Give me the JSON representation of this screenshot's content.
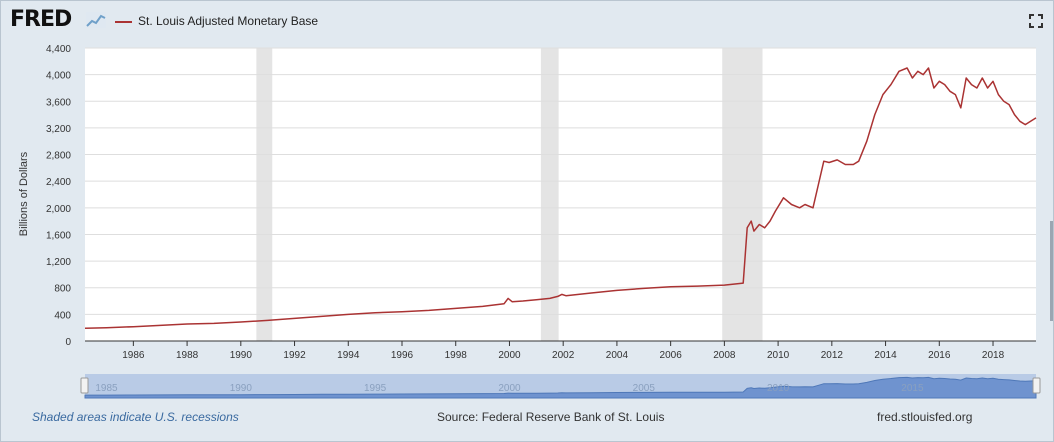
{
  "header": {
    "logo_text": "FRED",
    "series_label": "St. Louis Adjusted Monetary Base"
  },
  "colors": {
    "series": "#aa3333",
    "recession": "#e4e4e4",
    "navigator_fill": "#6f93cf",
    "navigator_bg": "#b9cbe6"
  },
  "icons": {
    "logo_mark": "line-chart-icon",
    "fullscreen": "expand-icon"
  },
  "footer": {
    "note": "Shaded areas indicate U.S. recessions",
    "source": "Source: Federal Reserve Bank of St. Louis",
    "site": "fred.stlouisfed.org"
  },
  "navigator": {
    "ticks": [
      "1985",
      "1990",
      "1995",
      "2000",
      "2005",
      "2010",
      "2015"
    ]
  },
  "chart_data": {
    "type": "line",
    "title": "",
    "ylabel": "Billions of Dollars",
    "xlabel": "",
    "xlim": [
      1984.2,
      2019.6
    ],
    "ylim": [
      0,
      4400
    ],
    "yticks": [
      "0",
      "400",
      "800",
      "1,200",
      "1,600",
      "2,000",
      "2,400",
      "2,800",
      "3,200",
      "3,600",
      "4,000",
      "4,400"
    ],
    "ytick_values": [
      0,
      400,
      800,
      1200,
      1600,
      2000,
      2400,
      2800,
      3200,
      3600,
      4000,
      4400
    ],
    "xticks": [
      "1986",
      "1988",
      "1990",
      "1992",
      "1994",
      "1996",
      "1998",
      "2000",
      "2002",
      "2004",
      "2006",
      "2008",
      "2010",
      "2012",
      "2014",
      "2016",
      "2018"
    ],
    "xtick_values": [
      1986,
      1988,
      1990,
      1992,
      1994,
      1996,
      1998,
      2000,
      2002,
      2004,
      2006,
      2008,
      2010,
      2012,
      2014,
      2016,
      2018
    ],
    "grid": true,
    "legend": "top-left",
    "recessions": [
      [
        1990.58,
        1991.17
      ],
      [
        2001.17,
        2001.83
      ],
      [
        2007.92,
        2009.42
      ]
    ],
    "series": [
      {
        "name": "St. Louis Adjusted Monetary Base",
        "x": [
          1984.2,
          1985,
          1986,
          1987,
          1988,
          1989,
          1990,
          1991,
          1992,
          1993,
          1994,
          1995,
          1996,
          1997,
          1998,
          1999,
          1999.8,
          1999.95,
          2000.1,
          2000.5,
          2001,
          2001.5,
          2001.8,
          2001.95,
          2002.1,
          2003,
          2004,
          2005,
          2006,
          2007,
          2008,
          2008.7,
          2008.85,
          2009.0,
          2009.1,
          2009.3,
          2009.5,
          2009.7,
          2009.9,
          2010.2,
          2010.5,
          2010.8,
          2011.0,
          2011.3,
          2011.5,
          2011.7,
          2011.9,
          2012.2,
          2012.5,
          2012.8,
          2013.0,
          2013.3,
          2013.6,
          2013.9,
          2014.2,
          2014.5,
          2014.8,
          2015.0,
          2015.2,
          2015.4,
          2015.6,
          2015.8,
          2016.0,
          2016.2,
          2016.4,
          2016.6,
          2016.8,
          2017.0,
          2017.2,
          2017.4,
          2017.6,
          2017.8,
          2018.0,
          2018.2,
          2018.4,
          2018.6,
          2018.8,
          2019.0,
          2019.2,
          2019.4,
          2019.6
        ],
        "values": [
          190,
          200,
          215,
          235,
          255,
          265,
          285,
          310,
          340,
          370,
          400,
          425,
          440,
          460,
          490,
          520,
          560,
          640,
          590,
          600,
          620,
          640,
          670,
          700,
          680,
          720,
          760,
          790,
          815,
          825,
          840,
          870,
          1700,
          1800,
          1650,
          1750,
          1700,
          1800,
          1950,
          2150,
          2050,
          2000,
          2050,
          2000,
          2350,
          2700,
          2680,
          2720,
          2650,
          2650,
          2700,
          3000,
          3400,
          3700,
          3850,
          4050,
          4100,
          3950,
          4050,
          4000,
          4100,
          3800,
          3900,
          3850,
          3750,
          3700,
          3500,
          3950,
          3850,
          3800,
          3950,
          3800,
          3900,
          3700,
          3600,
          3550,
          3400,
          3300,
          3250,
          3300,
          3350
        ]
      }
    ]
  }
}
